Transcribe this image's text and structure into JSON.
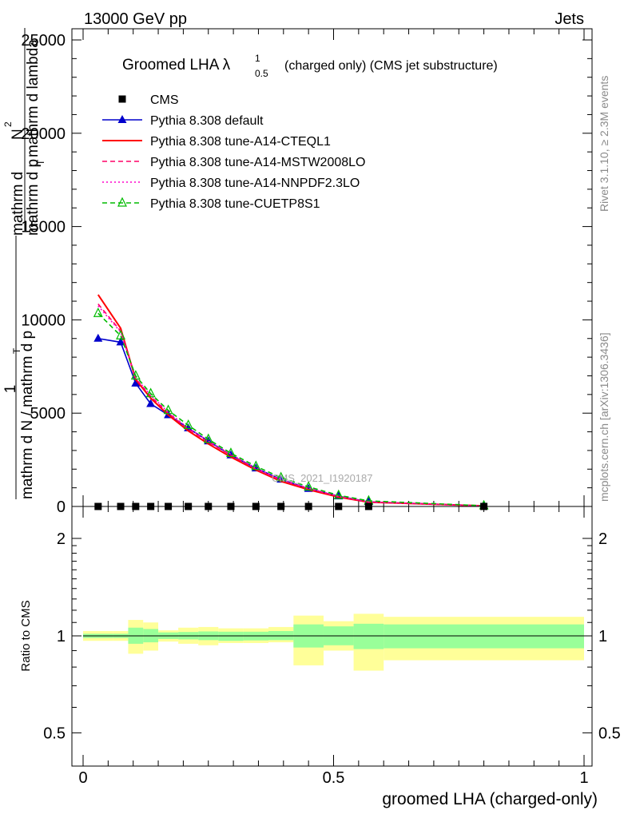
{
  "header": {
    "left": "13000 GeV pp",
    "right": "Jets"
  },
  "side": {
    "rivet": "Rivet 3.1.10, ≥ 2.3M events",
    "mcplots": "mcplots.cern.ch [arXiv:1306.3436]"
  },
  "chart_data": [
    {
      "type": "line",
      "title_main": "Groomed LHA λ",
      "title_sup": "1",
      "title_sub": "0.5",
      "title_rest": "(charged only) (CMS jet substructure)",
      "ylabel_lines": [
        "1",
        "mathrm dN",
        "mathrm d N / mathrmd p",
        "mathrm d p",
        "T",
        "mathrm d lambda",
        "T mathrm d lambda",
        "mathrm d N"
      ],
      "ylabel_numerator": "1",
      "ylabel_denominator": "mathrm d N / mathrm d p",
      "ylabel_denominator_sub": "T",
      "ylabel_right_num": "mathrm d",
      "ylabel_right_num_sup": "2",
      "ylabel_right_num2": "N",
      "ylabel_right_den": "mathrm d p",
      "ylabel_right_den_sub": "T",
      "ylabel_right_den2": " mathrm d lambda",
      "xlim": [
        0,
        1
      ],
      "ylim": [
        0,
        25600
      ],
      "yticks": [
        0,
        5000,
        10000,
        15000,
        20000,
        25000
      ],
      "ytick_labels": [
        "0",
        "5000",
        "10000",
        "15000",
        "20000",
        "25000"
      ],
      "watermark": "CMS_2021_I1920187",
      "series": [
        {
          "name": "CMS",
          "color": "#000000",
          "marker": "square",
          "x": [
            0.03,
            0.075,
            0.105,
            0.135,
            0.17,
            0.21,
            0.25,
            0.295,
            0.345,
            0.395,
            0.45,
            0.51,
            0.57,
            0.8
          ],
          "values": [
            0,
            0,
            0,
            0,
            0,
            0,
            0,
            0,
            0,
            0,
            0,
            0,
            0,
            0
          ]
        },
        {
          "name": "Pythia 8.308 default",
          "color": "#0000cc",
          "marker": "triangle",
          "line": "solid",
          "x": [
            0.03,
            0.075,
            0.105,
            0.135,
            0.17,
            0.21,
            0.25,
            0.295,
            0.345,
            0.395,
            0.45,
            0.51,
            0.57,
            0.8
          ],
          "values": [
            9000,
            8800,
            6600,
            5500,
            4900,
            4200,
            3500,
            2750,
            2050,
            1450,
            950,
            550,
            250,
            30
          ]
        },
        {
          "name": "Pythia 8.308 tune-A14-CTEQL1",
          "color": "#ff0000",
          "marker": "none",
          "line": "solid",
          "x": [
            0.03,
            0.075,
            0.105,
            0.135,
            0.17,
            0.21,
            0.25,
            0.295,
            0.345,
            0.395,
            0.45,
            0.51,
            0.57,
            0.8
          ],
          "values": [
            11350,
            9550,
            6800,
            5800,
            4900,
            4050,
            3350,
            2650,
            1950,
            1350,
            900,
            500,
            230,
            30
          ]
        },
        {
          "name": "Pythia 8.308 tune-A14-MSTW2008LO",
          "color": "#ff0066",
          "marker": "none",
          "line": "dashed",
          "x": [
            0.03,
            0.075,
            0.105,
            0.135,
            0.17,
            0.21,
            0.25,
            0.295,
            0.345,
            0.395,
            0.45,
            0.51,
            0.57,
            0.8
          ],
          "values": [
            10850,
            9400,
            6850,
            5900,
            5000,
            4150,
            3450,
            2750,
            2000,
            1400,
            950,
            530,
            240,
            30
          ]
        },
        {
          "name": "Pythia 8.308 tune-A14-NNPDF2.3LO",
          "color": "#ff00cc",
          "marker": "none",
          "line": "dotted",
          "x": [
            0.03,
            0.075,
            0.105,
            0.135,
            0.17,
            0.21,
            0.25,
            0.295,
            0.345,
            0.395,
            0.45,
            0.51,
            0.57,
            0.8
          ],
          "values": [
            10750,
            9350,
            6900,
            5950,
            5050,
            4200,
            3500,
            2800,
            2050,
            1450,
            980,
            550,
            250,
            30
          ]
        },
        {
          "name": "Pythia 8.308 tune-CUETP8S1",
          "color": "#00bb00",
          "marker": "open-triangle",
          "line": "dashed",
          "x": [
            0.03,
            0.075,
            0.105,
            0.135,
            0.17,
            0.21,
            0.25,
            0.295,
            0.345,
            0.395,
            0.45,
            0.51,
            0.57,
            0.8
          ],
          "values": [
            10350,
            9150,
            7000,
            6050,
            5150,
            4350,
            3600,
            2850,
            2150,
            1550,
            1050,
            600,
            300,
            40
          ]
        }
      ]
    },
    {
      "type": "band",
      "ylabel": "Ratio to CMS",
      "xlabel": "groomed LHA (charged-only)",
      "xlim": [
        0,
        1
      ],
      "ylim": [
        0.4,
        2.3
      ],
      "yticks": [
        0.5,
        1,
        2
      ],
      "ytick_labels": [
        "0.5",
        "1",
        "2"
      ],
      "xticks": [
        0,
        0.5,
        1
      ],
      "xtick_labels": [
        "0",
        "0.5",
        "1"
      ],
      "bin_edges": [
        0.0,
        0.06,
        0.09,
        0.12,
        0.15,
        0.19,
        0.23,
        0.27,
        0.32,
        0.37,
        0.42,
        0.48,
        0.54,
        0.6,
        1.0
      ],
      "inner_lo": [
        0.985,
        0.985,
        0.945,
        0.955,
        0.978,
        0.975,
        0.97,
        0.965,
        0.968,
        0.97,
        0.92,
        0.935,
        0.91,
        0.915
      ],
      "inner_hi": [
        1.015,
        1.015,
        1.06,
        1.05,
        1.025,
        1.028,
        1.032,
        1.03,
        1.03,
        1.035,
        1.085,
        1.07,
        1.09,
        1.085
      ],
      "outer_lo": [
        0.965,
        0.965,
        0.88,
        0.9,
        0.96,
        0.945,
        0.935,
        0.95,
        0.95,
        0.955,
        0.81,
        0.9,
        0.78,
        0.84
      ],
      "outer_hi": [
        1.035,
        1.035,
        1.12,
        1.1,
        1.04,
        1.06,
        1.065,
        1.055,
        1.055,
        1.065,
        1.155,
        1.11,
        1.17,
        1.145
      ],
      "colors": {
        "inner": "#99ff99",
        "outer": "#ffff99"
      }
    }
  ]
}
